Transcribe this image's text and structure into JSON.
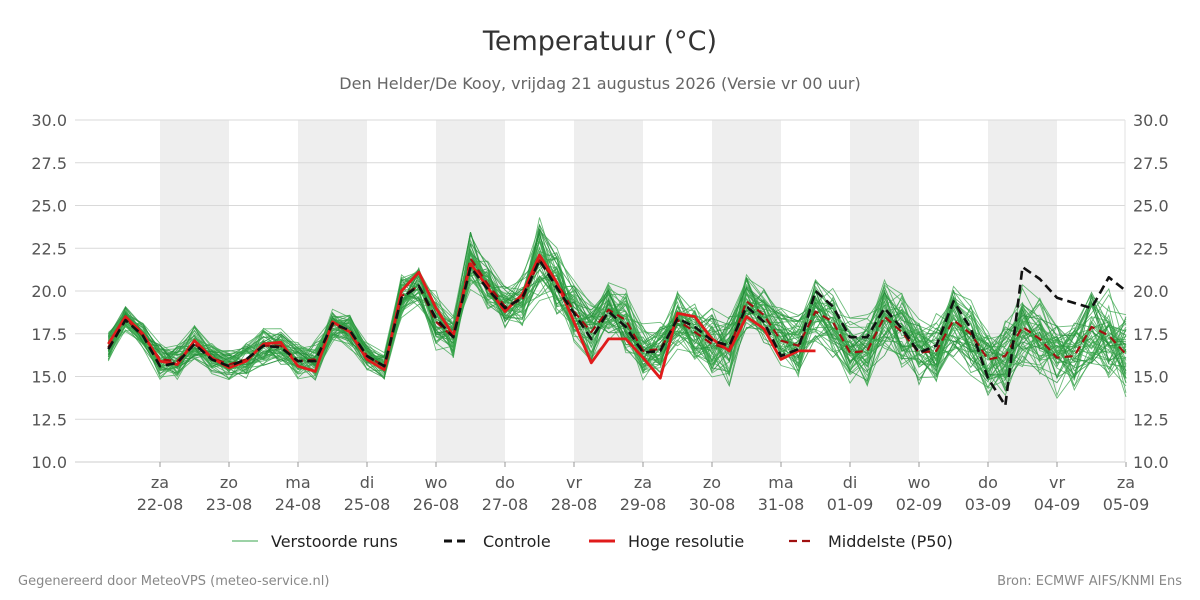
{
  "chart_data": {
    "type": "line",
    "title": "Temperatuur (°C)",
    "subtitle": "Den Helder/De Kooy, vrijdag 21 augustus 2026 (Versie vr 00 uur)",
    "ylim": [
      10,
      30
    ],
    "yticks": [
      "10.0",
      "12.5",
      "15.0",
      "17.5",
      "20.0",
      "22.5",
      "25.0",
      "27.5",
      "30.0"
    ],
    "xlim": [
      -0.75,
      14
    ],
    "x_ticks": [
      {
        "day": "za",
        "date": "22-08"
      },
      {
        "day": "zo",
        "date": "23-08"
      },
      {
        "day": "ma",
        "date": "24-08"
      },
      {
        "day": "di",
        "date": "25-08"
      },
      {
        "day": "wo",
        "date": "26-08"
      },
      {
        "day": "do",
        "date": "27-08"
      },
      {
        "day": "vr",
        "date": "28-08"
      },
      {
        "day": "za",
        "date": "29-08"
      },
      {
        "day": "zo",
        "date": "30-08"
      },
      {
        "day": "ma",
        "date": "31-08"
      },
      {
        "day": "di",
        "date": "01-09"
      },
      {
        "day": "wo",
        "date": "02-09"
      },
      {
        "day": "do",
        "date": "03-09"
      },
      {
        "day": "vr",
        "date": "04-09"
      },
      {
        "day": "za",
        "date": "05-09"
      }
    ],
    "shaded_day_indices": [
      0,
      2,
      4,
      6,
      8,
      10,
      12
    ],
    "legend": [
      {
        "label": "Verstoorde runs",
        "color": "#3aa64c",
        "style": "thin"
      },
      {
        "label": "Controle",
        "color": "#111111",
        "style": "dashed"
      },
      {
        "label": "Hoge resolutie",
        "color": "#e01b1b",
        "style": "solid"
      },
      {
        "label": "Middelste (P50)",
        "color": "#a01010",
        "style": "dashed"
      }
    ],
    "series": [
      {
        "name": "Hoge resolutie",
        "color": "#e01b1b",
        "x": [
          -0.75,
          -0.5,
          -0.25,
          0,
          0.25,
          0.5,
          0.75,
          1,
          1.25,
          1.5,
          1.75,
          2,
          2.25,
          2.5,
          2.75,
          3,
          3.25,
          3.5,
          3.75,
          4,
          4.25,
          4.5,
          4.75,
          5,
          5.25,
          5.5,
          5.75,
          6,
          6.25,
          6.5,
          6.75,
          7,
          7.25,
          7.5,
          7.75,
          8,
          8.25,
          8.5,
          8.75,
          9,
          9.25,
          9.5
        ],
        "values": [
          16.9,
          18.5,
          17.5,
          15.9,
          15.7,
          17.1,
          16.1,
          15.5,
          15.9,
          16.9,
          17.0,
          15.6,
          15.3,
          18.2,
          17.6,
          16.0,
          15.4,
          20.0,
          21.1,
          19.0,
          17.4,
          21.6,
          20.2,
          18.8,
          19.8,
          22.1,
          20.5,
          18.2,
          15.8,
          17.2,
          17.2,
          16.1,
          14.9,
          18.7,
          18.5,
          17.2,
          16.5,
          18.5,
          17.8,
          16.0,
          16.5,
          16.5
        ]
      },
      {
        "name": "Controle",
        "color": "#111111",
        "x": [
          -0.75,
          -0.5,
          -0.25,
          0,
          0.25,
          0.5,
          0.75,
          1,
          1.25,
          1.5,
          1.75,
          2,
          2.25,
          2.5,
          2.75,
          3,
          3.25,
          3.5,
          3.75,
          4,
          4.25,
          4.5,
          4.75,
          5,
          5.25,
          5.5,
          5.75,
          6,
          6.25,
          6.5,
          6.75,
          7,
          7.25,
          7.5,
          7.75,
          8,
          8.25,
          8.5,
          8.75,
          9,
          9.25,
          9.5,
          9.75,
          10,
          10.25,
          10.5,
          10.75,
          11,
          11.25,
          11.5,
          11.75,
          12,
          12.25,
          12.5,
          12.75,
          13,
          13.25,
          13.5,
          13.75,
          14
        ],
        "values": [
          16.6,
          18.3,
          17.4,
          15.6,
          15.8,
          16.9,
          16.0,
          15.6,
          16.0,
          16.8,
          16.7,
          15.9,
          15.9,
          18.1,
          17.7,
          16.2,
          15.6,
          19.6,
          20.3,
          18.4,
          17.3,
          21.4,
          20.1,
          19.0,
          19.6,
          21.8,
          20.2,
          18.7,
          17.2,
          18.8,
          17.9,
          16.4,
          16.5,
          18.4,
          17.9,
          17.1,
          16.8,
          19.1,
          18.2,
          16.2,
          16.6,
          20.0,
          19.1,
          17.3,
          17.3,
          19.0,
          17.8,
          16.4,
          16.8,
          19.4,
          17.8,
          14.9,
          13.3,
          21.4,
          20.7,
          19.6,
          19.3,
          19.0,
          20.8,
          20.0
        ]
      },
      {
        "name": "Middelste (P50)",
        "color": "#a01010",
        "x": [
          -0.75,
          -0.5,
          -0.25,
          0,
          0.25,
          0.5,
          0.75,
          1,
          1.25,
          1.5,
          1.75,
          2,
          2.25,
          2.5,
          2.75,
          3,
          3.25,
          3.5,
          3.75,
          4,
          4.25,
          4.5,
          4.75,
          5,
          5.25,
          5.5,
          5.75,
          6,
          6.25,
          6.5,
          6.75,
          7,
          7.25,
          7.5,
          7.75,
          8,
          8.25,
          8.5,
          8.75,
          9,
          9.25,
          9.5,
          9.75,
          10,
          10.25,
          10.5,
          10.75,
          11,
          11.25,
          11.5,
          11.75,
          12,
          12.25,
          12.5,
          12.75,
          13,
          13.25,
          13.5,
          13.75,
          14
        ],
        "values": [
          16.7,
          18.4,
          17.4,
          16.0,
          15.9,
          16.9,
          16.1,
          15.7,
          16.0,
          16.8,
          16.8,
          15.9,
          16.0,
          18.0,
          17.7,
          16.2,
          15.6,
          19.7,
          20.3,
          18.2,
          17.3,
          21.9,
          20.4,
          19.1,
          19.5,
          21.8,
          20.5,
          18.8,
          17.6,
          18.9,
          18.3,
          16.5,
          16.6,
          18.3,
          17.6,
          16.9,
          16.6,
          19.4,
          18.6,
          17.1,
          16.8,
          18.8,
          18.2,
          16.4,
          16.5,
          18.5,
          17.6,
          16.4,
          16.5,
          18.3,
          17.5,
          16.0,
          16.2,
          17.9,
          17.2,
          16.1,
          16.2,
          17.9,
          17.4,
          16.3
        ]
      }
    ]
  },
  "ensemble_spread": [
    {
      "x": -0.75,
      "base": 16.7,
      "spread": 0.7
    },
    {
      "x": -0.5,
      "base": 18.4,
      "spread": 0.6
    },
    {
      "x": -0.25,
      "base": 17.4,
      "spread": 0.6
    },
    {
      "x": 0,
      "base": 16.0,
      "spread": 0.9
    },
    {
      "x": 0.25,
      "base": 15.9,
      "spread": 0.8
    },
    {
      "x": 0.5,
      "base": 16.9,
      "spread": 0.8
    },
    {
      "x": 0.75,
      "base": 16.1,
      "spread": 0.7
    },
    {
      "x": 1,
      "base": 15.7,
      "spread": 0.7
    },
    {
      "x": 1.25,
      "base": 16.0,
      "spread": 0.8
    },
    {
      "x": 1.5,
      "base": 16.8,
      "spread": 0.9
    },
    {
      "x": 1.75,
      "base": 16.8,
      "spread": 0.8
    },
    {
      "x": 2,
      "base": 15.9,
      "spread": 0.8
    },
    {
      "x": 2.25,
      "base": 16.0,
      "spread": 0.9
    },
    {
      "x": 2.5,
      "base": 18.0,
      "spread": 0.8
    },
    {
      "x": 2.75,
      "base": 17.7,
      "spread": 0.9
    },
    {
      "x": 3,
      "base": 16.2,
      "spread": 0.6
    },
    {
      "x": 3.25,
      "base": 15.6,
      "spread": 0.6
    },
    {
      "x": 3.5,
      "base": 19.7,
      "spread": 1.0
    },
    {
      "x": 3.75,
      "base": 20.3,
      "spread": 1.0
    },
    {
      "x": 4,
      "base": 18.2,
      "spread": 1.3
    },
    {
      "x": 4.25,
      "base": 17.3,
      "spread": 1.2
    },
    {
      "x": 4.5,
      "base": 21.9,
      "spread": 1.4
    },
    {
      "x": 4.75,
      "base": 20.4,
      "spread": 1.2
    },
    {
      "x": 5,
      "base": 19.1,
      "spread": 1.0
    },
    {
      "x": 5.25,
      "base": 19.5,
      "spread": 1.2
    },
    {
      "x": 5.5,
      "base": 21.8,
      "spread": 1.9
    },
    {
      "x": 5.75,
      "base": 20.5,
      "spread": 1.7
    },
    {
      "x": 6,
      "base": 18.8,
      "spread": 1.4
    },
    {
      "x": 6.25,
      "base": 17.6,
      "spread": 1.3
    },
    {
      "x": 6.5,
      "base": 18.9,
      "spread": 1.5
    },
    {
      "x": 6.75,
      "base": 18.3,
      "spread": 1.5
    },
    {
      "x": 7,
      "base": 16.5,
      "spread": 1.4
    },
    {
      "x": 7.25,
      "base": 16.6,
      "spread": 1.3
    },
    {
      "x": 7.5,
      "base": 18.3,
      "spread": 1.4
    },
    {
      "x": 7.75,
      "base": 17.6,
      "spread": 1.4
    },
    {
      "x": 8,
      "base": 16.9,
      "spread": 1.6
    },
    {
      "x": 8.25,
      "base": 16.6,
      "spread": 1.6
    },
    {
      "x": 8.5,
      "base": 19.4,
      "spread": 1.3
    },
    {
      "x": 8.75,
      "base": 18.6,
      "spread": 1.3
    },
    {
      "x": 9,
      "base": 17.1,
      "spread": 1.6
    },
    {
      "x": 9.25,
      "base": 16.8,
      "spread": 1.6
    },
    {
      "x": 9.5,
      "base": 18.8,
      "spread": 1.5
    },
    {
      "x": 9.75,
      "base": 18.2,
      "spread": 1.5
    },
    {
      "x": 10,
      "base": 16.4,
      "spread": 1.6
    },
    {
      "x": 10.25,
      "base": 16.5,
      "spread": 1.6
    },
    {
      "x": 10.5,
      "base": 18.5,
      "spread": 1.7
    },
    {
      "x": 10.75,
      "base": 17.6,
      "spread": 1.7
    },
    {
      "x": 11,
      "base": 16.4,
      "spread": 1.7
    },
    {
      "x": 11.25,
      "base": 16.5,
      "spread": 1.7
    },
    {
      "x": 11.5,
      "base": 18.3,
      "spread": 1.8
    },
    {
      "x": 11.75,
      "base": 17.5,
      "spread": 1.8
    },
    {
      "x": 12,
      "base": 16.0,
      "spread": 1.8
    },
    {
      "x": 12.25,
      "base": 16.2,
      "spread": 1.8
    },
    {
      "x": 12.5,
      "base": 17.9,
      "spread": 1.9
    },
    {
      "x": 12.75,
      "base": 17.2,
      "spread": 1.9
    },
    {
      "x": 13,
      "base": 16.1,
      "spread": 1.9
    },
    {
      "x": 13.25,
      "base": 16.2,
      "spread": 1.9
    },
    {
      "x": 13.5,
      "base": 17.9,
      "spread": 2.0
    },
    {
      "x": 13.75,
      "base": 17.4,
      "spread": 2.0
    },
    {
      "x": 14,
      "base": 16.3,
      "spread": 2.0
    }
  ],
  "footer": {
    "left": "Gegenereerd door MeteoVPS (meteo-service.nl)",
    "right": "Bron: ECMWF AIFS/KNMI Ens"
  }
}
